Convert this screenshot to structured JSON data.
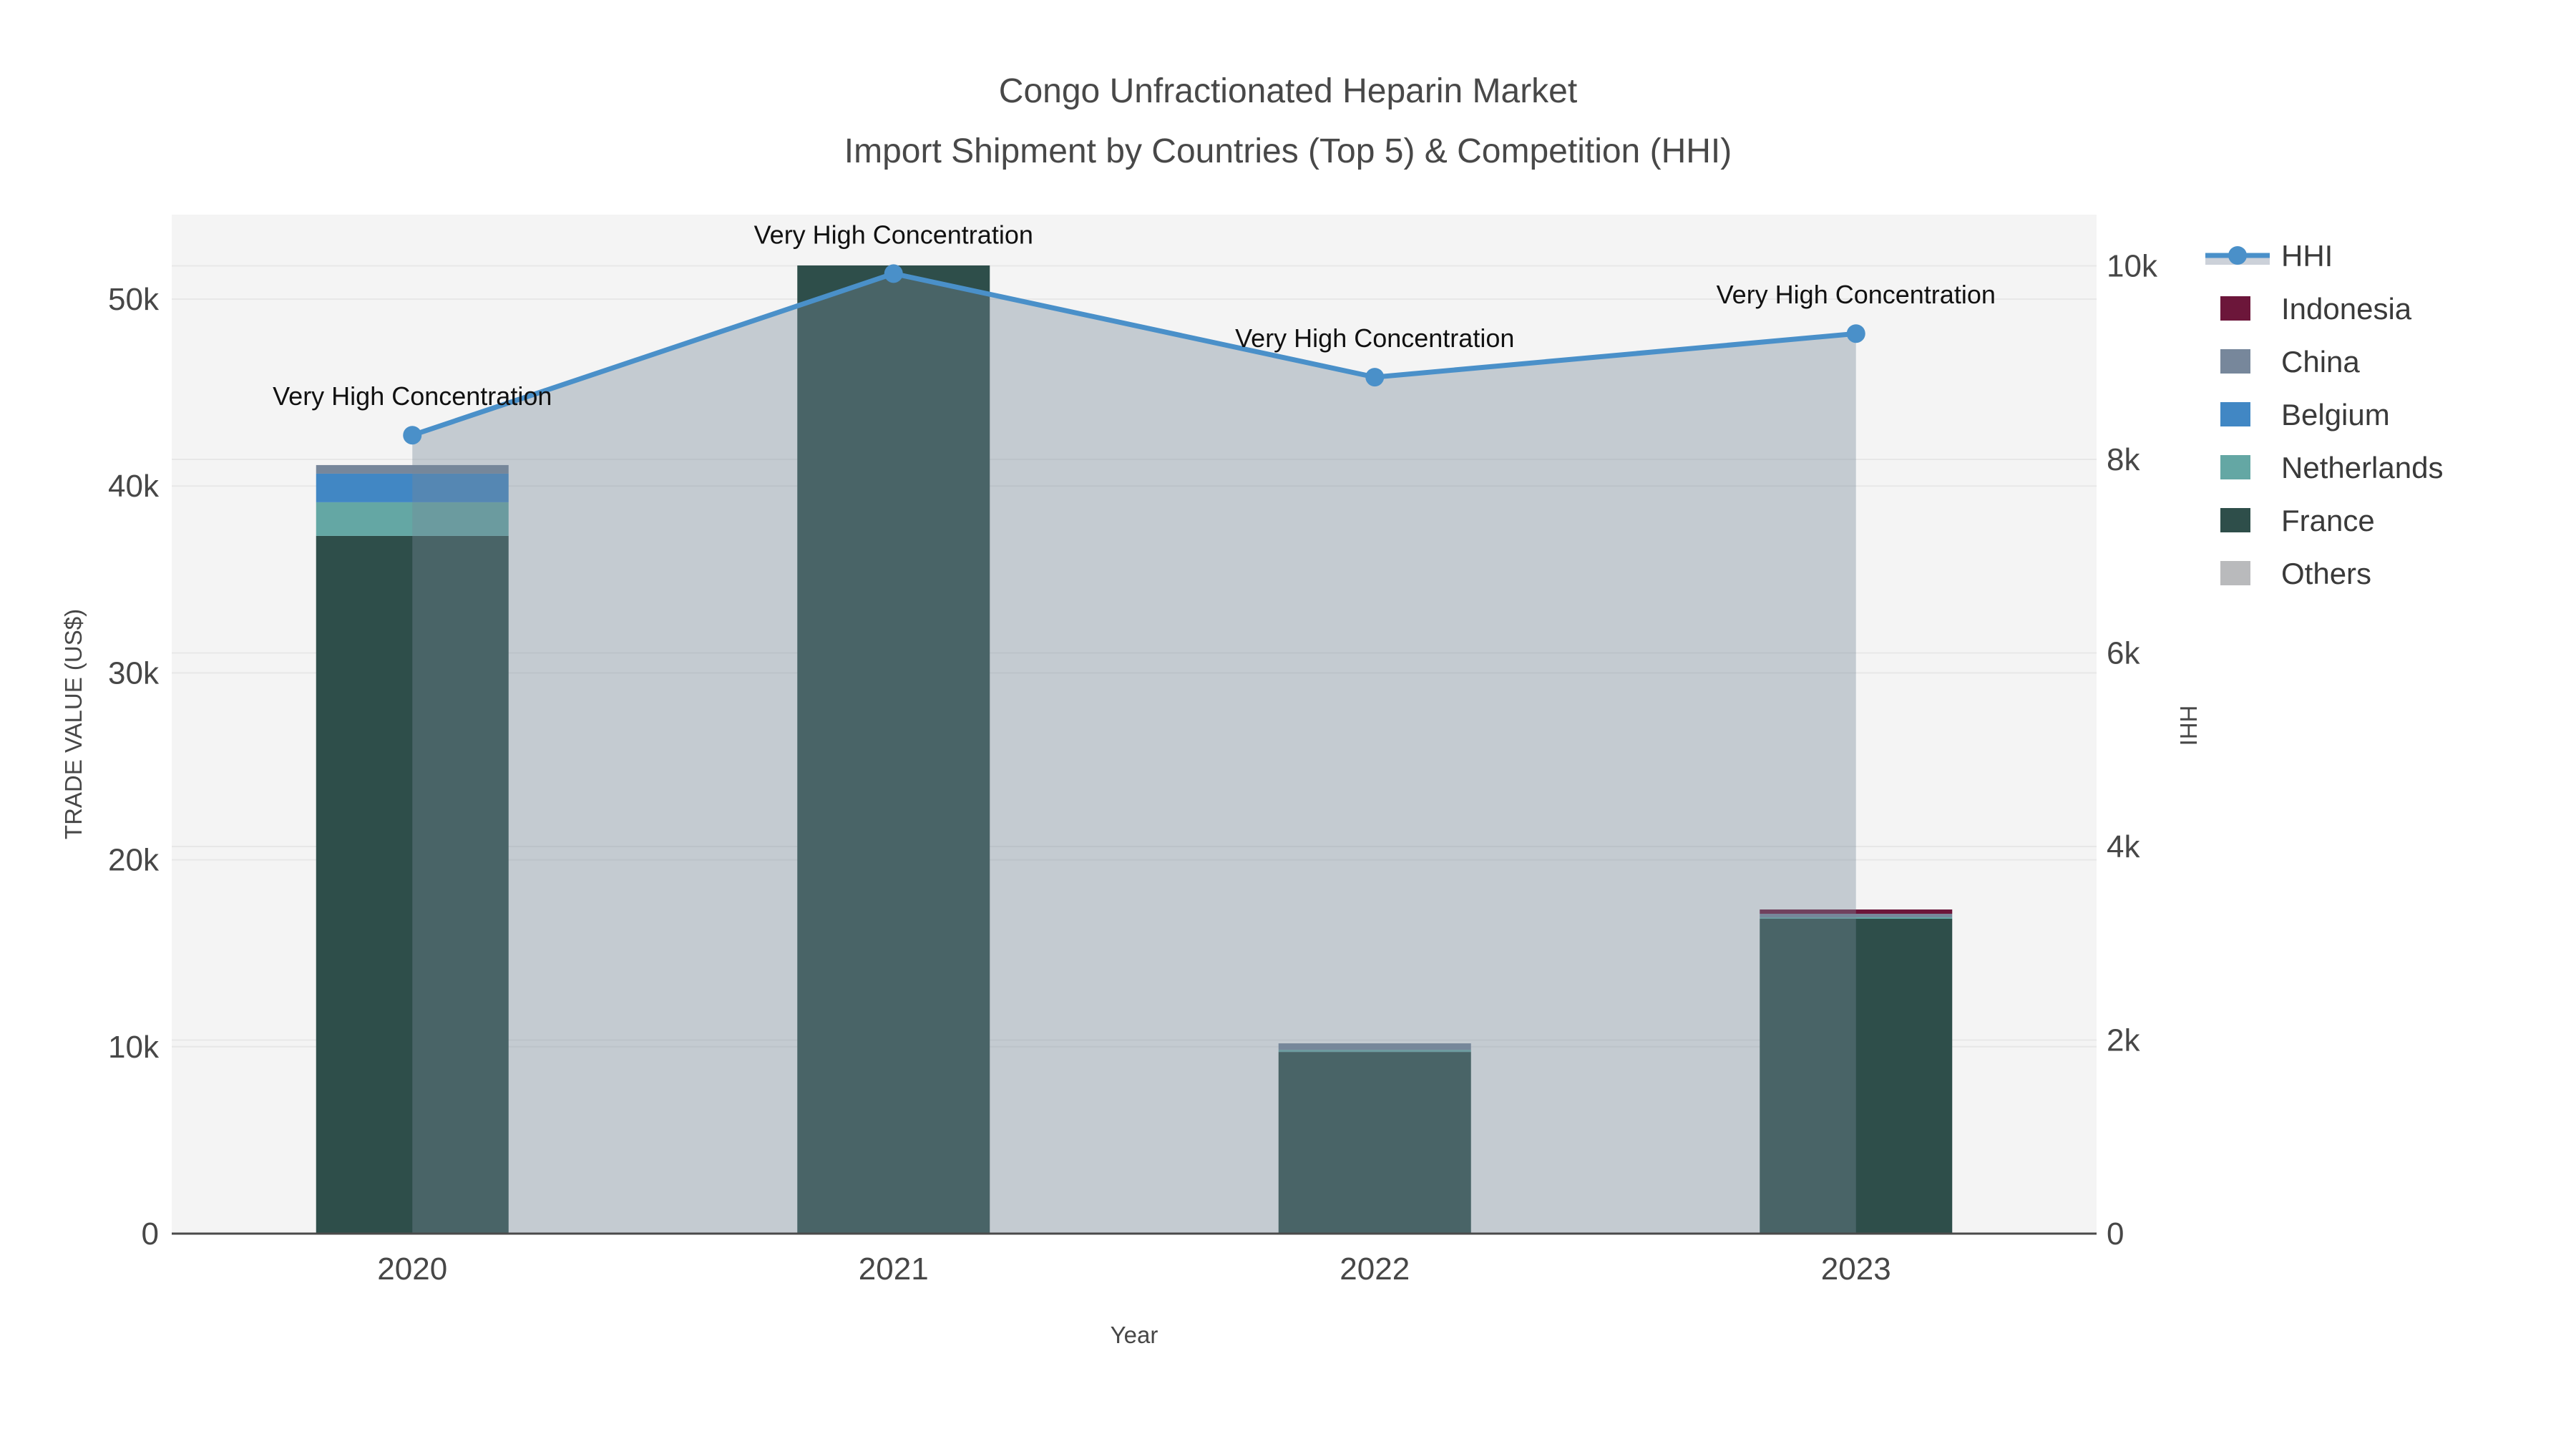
{
  "title": {
    "line1": "Congo Unfractionated Heparin Market",
    "line2": "Import Shipment by Countries (Top 5) & Competition (HHI)"
  },
  "colors": {
    "figure_bg": "#ffffff",
    "plot_bg": "#f4f4f4",
    "gridline": "#e7e7e7",
    "axis_line": "#4a4a4a",
    "tick_text": "#474747",
    "annotation_text": "#111111",
    "legend_text": "#3a3a3a",
    "hhi_line": "#4A90C9",
    "hhi_area": "rgba(119,136,153,0.38)",
    "hhi_legend_band": "#CCD1D9"
  },
  "chart_data": {
    "type": "bar",
    "subtype": "stacked-bar-with-line",
    "title": "Congo Unfractionated Heparin Market Import Shipment by Countries (Top 5) & Competition (HHI)",
    "categories": [
      "2020",
      "2021",
      "2022",
      "2023"
    ],
    "series": [
      {
        "name": "Indonesia",
        "color": "#6C163A",
        "values": [
          0,
          0,
          0,
          230
        ]
      },
      {
        "name": "China",
        "color": "#77879B",
        "values": [
          460,
          0,
          345,
          190
        ]
      },
      {
        "name": "Belgium",
        "color": "#4187C4",
        "values": [
          1530,
          0,
          0,
          0
        ]
      },
      {
        "name": "Netherlands",
        "color": "#64A7A4",
        "values": [
          1800,
          0,
          115,
          77
        ]
      },
      {
        "name": "France",
        "color": "#2E4E4A",
        "values": [
          37330,
          51800,
          9720,
          16845
        ]
      },
      {
        "name": "Others",
        "color": "#B9BABC",
        "values": [
          0,
          0,
          0,
          0
        ]
      }
    ],
    "stack_order_bottom_to_top": [
      "Others",
      "France",
      "Netherlands",
      "Belgium",
      "China",
      "Indonesia"
    ],
    "bar_totals": [
      41120,
      51800,
      10180,
      17342
    ],
    "line": {
      "name": "HHI",
      "values": [
        8250,
        9920,
        8850,
        9300
      ]
    },
    "point_annotations": [
      "Very High Concentration",
      "Very High Concentration",
      "Very High Concentration",
      "Very High Concentration"
    ],
    "xlabel": "Year",
    "ylabel_left": "TRADE VALUE (US$)",
    "ylabel_right": "HHI",
    "y_left_ticks": [
      {
        "label": "0",
        "value": 0
      },
      {
        "label": "10k",
        "value": 10000
      },
      {
        "label": "20k",
        "value": 20000
      },
      {
        "label": "30k",
        "value": 30000
      },
      {
        "label": "40k",
        "value": 40000
      },
      {
        "label": "50k",
        "value": 50000
      }
    ],
    "y_right_ticks": [
      {
        "label": "0",
        "value": 0
      },
      {
        "label": "2k",
        "value": 2000
      },
      {
        "label": "4k",
        "value": 4000
      },
      {
        "label": "6k",
        "value": 6000
      },
      {
        "label": "8k",
        "value": 8000
      },
      {
        "label": "10k",
        "value": 10000
      }
    ],
    "y_left_axis_max": 54517,
    "y_right_axis_max": 10529,
    "grid": true,
    "legend_position": "right",
    "legend_order": [
      "HHI",
      "Indonesia",
      "China",
      "Belgium",
      "Netherlands",
      "France",
      "Others"
    ]
  }
}
